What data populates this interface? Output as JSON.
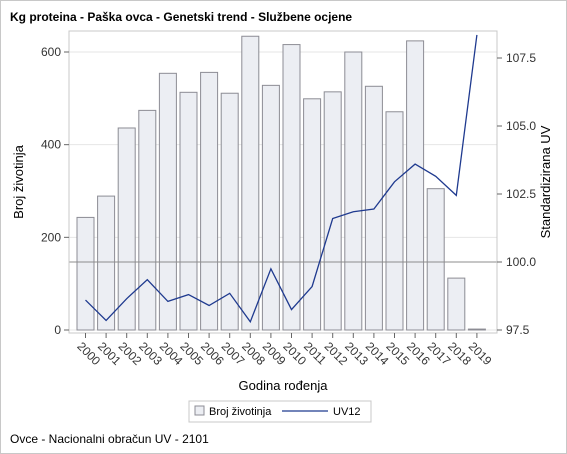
{
  "title": "Kg proteina - Paška ovca - Genetski trend - Službene ocjene",
  "footnote": "Ovce - Nacionalni obračun UV - 2101",
  "colors": {
    "bar_fill": "#eceef3",
    "bar_stroke": "#8c8c94",
    "line": "#1f3a8f",
    "grid": "#e6e6e6",
    "reference": "#8c8c8c"
  },
  "chart_data": {
    "type": "bar",
    "xlabel": "Godina rođenja",
    "ylabel": "Broj životinja",
    "y2label": "Standardizirana UV",
    "categories": [
      "2000",
      "2001",
      "2002",
      "2003",
      "2004",
      "2005",
      "2006",
      "2007",
      "2008",
      "2009",
      "2010",
      "2011",
      "2012",
      "2013",
      "2014",
      "2015",
      "2016",
      "2017",
      "2018",
      "2019"
    ],
    "ylim": [
      0,
      640
    ],
    "y2lim": [
      97.5,
      107.9
    ],
    "yticks": [
      0,
      200,
      400,
      600
    ],
    "y2ticks": [
      "97.5",
      "100.0",
      "102.5",
      "105.0",
      "107.5"
    ],
    "y2_reference": 100.0,
    "grid": true,
    "legend_position": "bottom",
    "series": [
      {
        "name": "Broj životinja",
        "type": "bar",
        "axis": "left",
        "values": [
          243,
          289,
          436,
          474,
          554,
          513,
          556,
          511,
          634,
          528,
          616,
          499,
          514,
          600,
          526,
          471,
          624,
          305,
          112,
          2
        ]
      },
      {
        "name": "UV12",
        "type": "line",
        "axis": "right",
        "values": [
          98.6,
          97.85,
          98.65,
          99.35,
          98.55,
          98.8,
          98.4,
          98.85,
          97.8,
          99.75,
          98.25,
          99.1,
          101.6,
          101.85,
          101.95,
          102.95,
          103.6,
          103.15,
          102.45,
          108.35
        ]
      }
    ]
  }
}
